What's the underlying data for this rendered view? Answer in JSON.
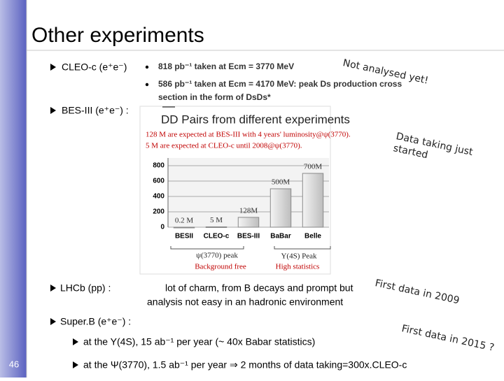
{
  "title": "Other experiments",
  "cleo_bullet": "CLEO-c (e⁺e⁻)",
  "cleo_items": [
    "818 pb⁻¹ taken at Ecm = 3770 MeV",
    "586 pb⁻¹ taken at Ecm = 4170 MeV: peak Ds production cross",
    "section in the form of DsDs*"
  ],
  "cleo_note": "Not analysed yet!",
  "bes_bullet": "BES-III (e⁺e⁻) :",
  "bes_note": [
    "Data taking just",
    "started"
  ],
  "lhcb_bullet": "LHCb (pp) :",
  "lhcb_text": [
    "lot of charm, from B decays and prompt but",
    "analysis not easy in an hadronic environment"
  ],
  "lhcb_note": "First data in 2009",
  "superb_bullet": "Super.B (e⁺e⁻) :",
  "superb_items": [
    "at the Y(4S), 15 ab⁻¹ per year  (~ 40x Babar statistics)",
    "at the Ψ(3770), 1.5 ab⁻¹ per year ⇒ 2 months of data taking=300x.CLEO-c"
  ],
  "superb_note": "First data in 2015 ?",
  "page_number": "46",
  "chart_data": {
    "type": "bar",
    "title": "DD Pairs from different experiments",
    "annotations": [
      "128 M are expected at BES-III with 4 years' luminosity@ψ(3770).",
      "5 M are expected at CLEO-c until 2008@ψ(3770)."
    ],
    "groups": [
      "ψ(3770) peak",
      "Background free",
      "Y(4S) Peak",
      "High statistics"
    ],
    "categories": [
      "BESII",
      "CLEO-c",
      "BES-III",
      "BaBar",
      "Belle"
    ],
    "values": [
      0.2,
      5,
      128,
      500,
      700
    ],
    "value_labels": [
      "0.2 M",
      "5 M",
      "128M",
      "500M",
      "700M"
    ],
    "color": "#d9d9d9",
    "ylim": [
      0,
      900
    ],
    "yticks": [
      0,
      200,
      400,
      600,
      800
    ],
    "grid": true
  }
}
